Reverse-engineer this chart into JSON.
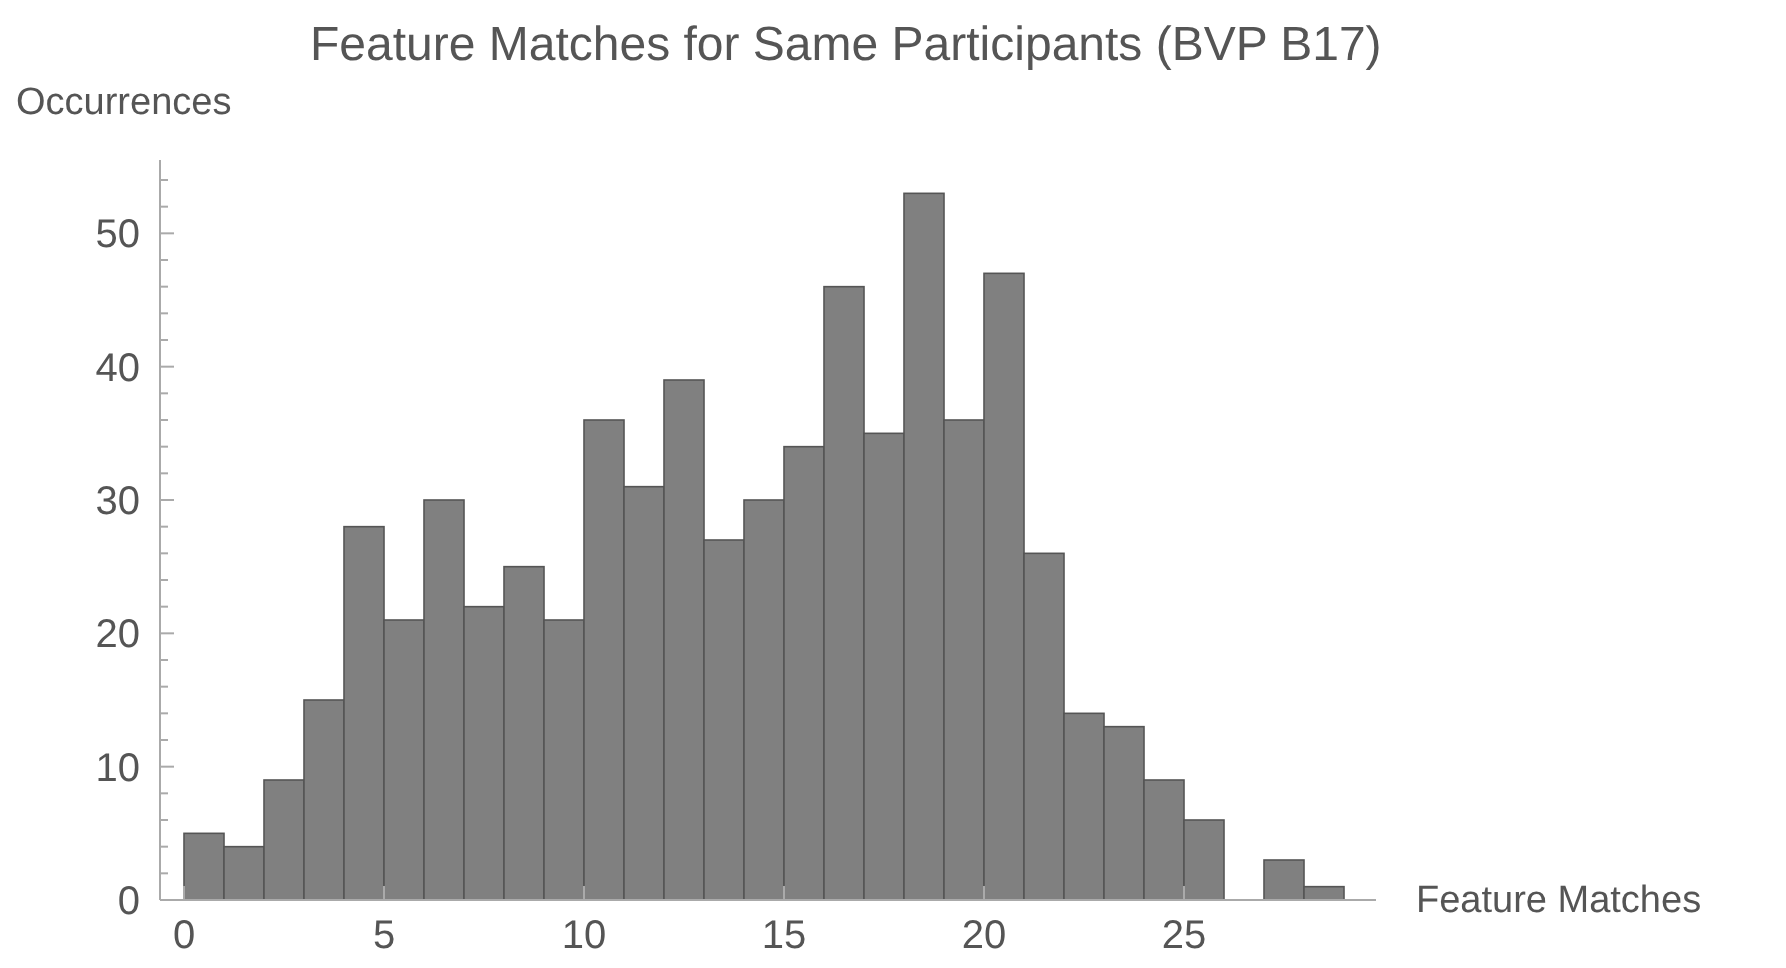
{
  "chart_data": {
    "type": "histogram",
    "title": "Feature Matches for Same Participants (BVP B17)",
    "xlabel": "Feature Matches",
    "ylabel": "Occurrences",
    "bins": [
      0,
      1,
      2,
      3,
      4,
      5,
      6,
      7,
      8,
      9,
      10,
      11,
      12,
      13,
      14,
      15,
      16,
      17,
      18,
      19,
      20,
      21,
      22,
      23,
      24,
      25,
      26,
      27,
      28,
      29
    ],
    "values": [
      5,
      4,
      9,
      15,
      28,
      21,
      30,
      22,
      25,
      21,
      36,
      31,
      39,
      27,
      30,
      34,
      46,
      35,
      53,
      36,
      47,
      26,
      14,
      13,
      9,
      6,
      0,
      3,
      1
    ],
    "color": "#808080",
    "xlim": [
      -0.6,
      29.8
    ],
    "ylim": [
      0,
      55.5
    ],
    "xticks": [
      0,
      5,
      10,
      15,
      20,
      25
    ],
    "yticks": [
      0,
      {
        "value": 2,
        "label": null
      },
      {
        "value": 4,
        "label": null
      },
      {
        "value": 6,
        "label": null
      },
      {
        "value": 8,
        "label": null
      },
      10,
      {
        "value": 12,
        "label": null
      },
      {
        "value": 14,
        "label": null
      },
      {
        "value": 16,
        "label": null
      },
      {
        "value": 18,
        "label": null
      },
      20,
      {
        "value": 22,
        "label": null
      },
      {
        "value": 24,
        "label": null
      },
      {
        "value": 26,
        "label": null
      },
      {
        "value": 28,
        "label": null
      },
      30,
      {
        "value": 32,
        "label": null
      },
      {
        "value": 34,
        "label": null
      },
      {
        "value": 36,
        "label": null
      },
      {
        "value": 38,
        "label": null
      },
      40,
      {
        "value": 42,
        "label": null
      },
      {
        "value": 44,
        "label": null
      },
      {
        "value": 46,
        "label": null
      },
      {
        "value": 48,
        "label": null
      },
      50,
      {
        "value": 52,
        "label": null
      },
      {
        "value": 54,
        "label": null
      }
    ],
    "grid": false
  }
}
